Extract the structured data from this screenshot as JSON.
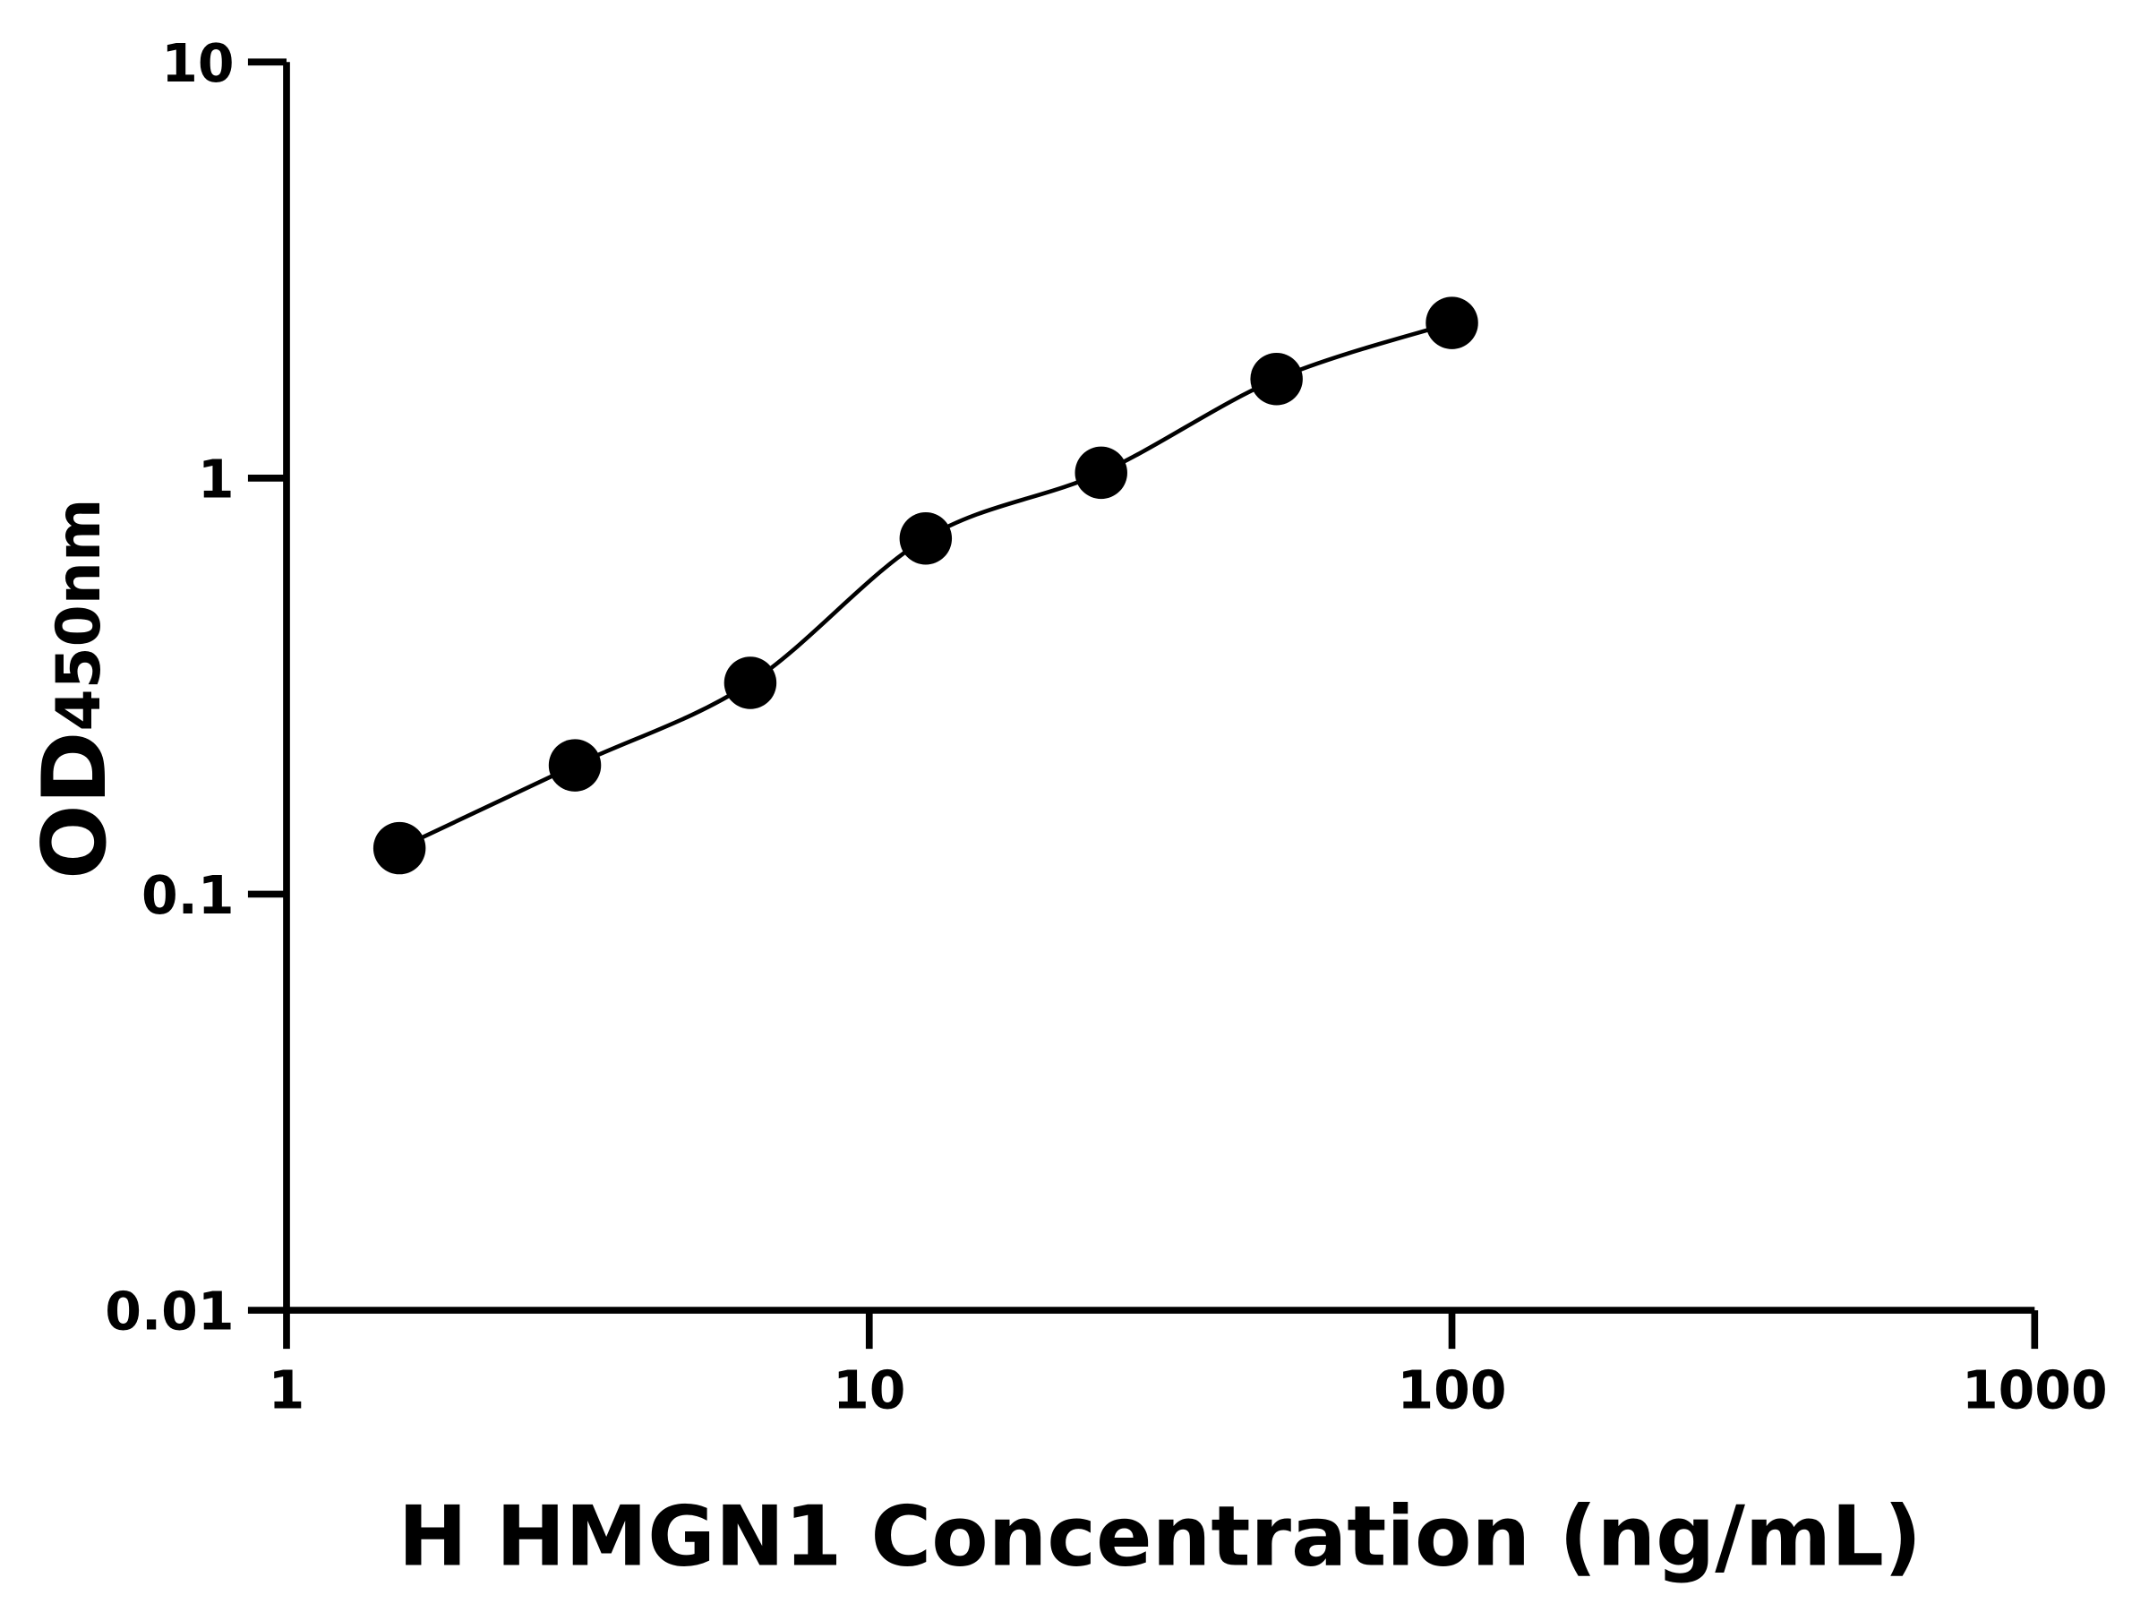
{
  "chart_data": {
    "type": "scatter",
    "title": "",
    "xlabel": "H HMGN1 Concentration (ng/mL)",
    "ylabel": "OD",
    "ylabel_subscript": "450nm",
    "xscale": "log",
    "yscale": "log",
    "xlim": [
      1,
      1000
    ],
    "ylim": [
      0.01,
      10
    ],
    "xticks": [
      "1",
      "10",
      "100",
      "1000"
    ],
    "yticks": [
      "0.01",
      "0.1",
      "1",
      "10"
    ],
    "grid": false,
    "legend": "none",
    "fit_line": true,
    "series": [
      {
        "x": [
          1.5625,
          3.125,
          6.25,
          12.5,
          25,
          50,
          100
        ],
        "y": [
          0.129,
          0.204,
          0.322,
          0.716,
          1.03,
          1.73,
          2.36
        ]
      }
    ],
    "colors": {
      "marker": "#000000",
      "line": "#000000"
    }
  }
}
